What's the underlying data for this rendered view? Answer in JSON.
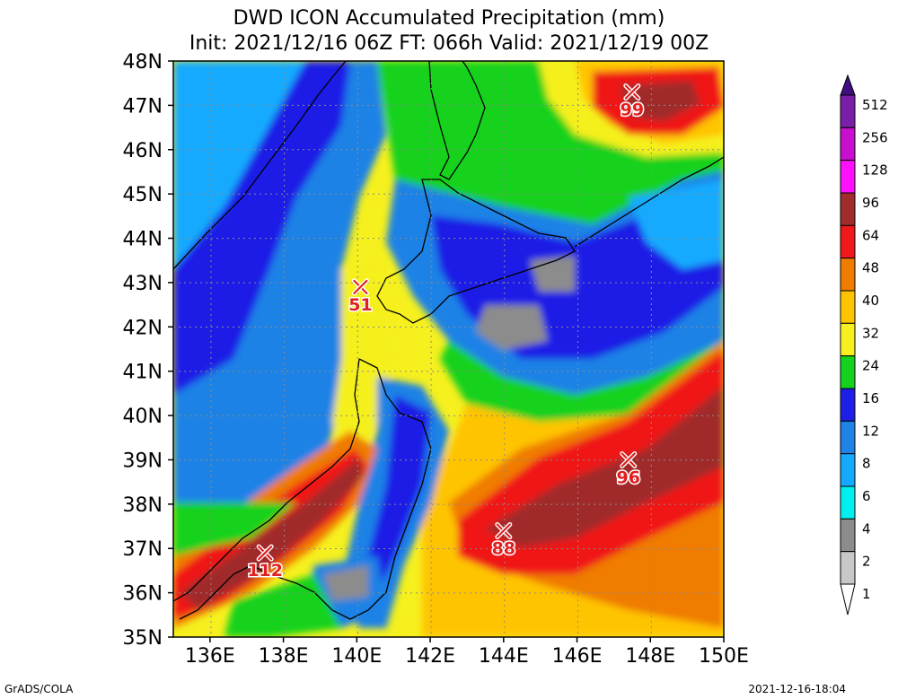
{
  "title_line1": "DWD ICON Accumulated Precipitation (mm)",
  "title_line2": "Init: 2021/12/16 06Z  FT: 066h  Valid: 2021/12/19 00Z",
  "lat_labels": [
    "48N",
    "47N",
    "46N",
    "45N",
    "44N",
    "43N",
    "42N",
    "41N",
    "40N",
    "39N",
    "38N",
    "37N",
    "36N",
    "35N"
  ],
  "lon_labels": [
    "136E",
    "138E",
    "140E",
    "142E",
    "144E",
    "146E",
    "148E",
    "150E"
  ],
  "lon_range": [
    135,
    150
  ],
  "lat_range": [
    35,
    48
  ],
  "legend": {
    "levels": [
      "512",
      "256",
      "128",
      "96",
      "64",
      "48",
      "40",
      "32",
      "24",
      "16",
      "12",
      "8",
      "6",
      "4",
      "2",
      "1"
    ],
    "colors": [
      "#3f0f7f",
      "#7a1fa8",
      "#c80fd0",
      "#ff10ff",
      "#a02c2c",
      "#f01818",
      "#f07c00",
      "#ffc400",
      "#f5f01e",
      "#14d21e",
      "#1e1ee6",
      "#1e82e6",
      "#14aaff",
      "#00f0f0",
      "#8c8c8c",
      "#c8c8c8",
      "#ffffff"
    ]
  },
  "markers": [
    {
      "label": "99",
      "lon": 147.5,
      "lat": 47.3,
      "color": "#b21a1a"
    },
    {
      "label": "51",
      "lon": 140.1,
      "lat": 42.9,
      "color": "#f01818"
    },
    {
      "label": "96",
      "lon": 147.4,
      "lat": 39.0,
      "color": "#a02c2c"
    },
    {
      "label": "88",
      "lon": 144.0,
      "lat": 37.4,
      "color": "#a02c2c"
    },
    {
      "label": "112",
      "lon": 137.5,
      "lat": 36.9,
      "color": "#a02c2c"
    }
  ],
  "footer_left": "GrADS/COLA",
  "footer_right": "2021-12-16-18:04"
}
